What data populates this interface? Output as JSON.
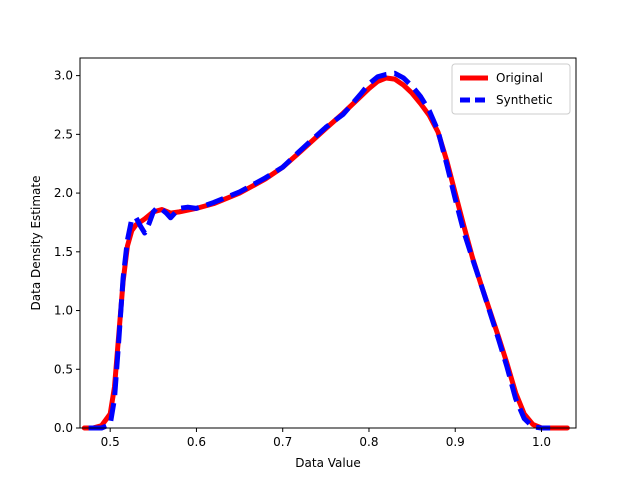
{
  "chart_data": {
    "type": "line",
    "title": "",
    "xlabel": "Data Value",
    "ylabel": "Data Density Estimate",
    "xlim": [
      0.465,
      1.04
    ],
    "ylim": [
      0.0,
      3.15
    ],
    "xticks": [
      0.5,
      0.6,
      0.7,
      0.8,
      0.9,
      1.0
    ],
    "xtick_labels": [
      "0.5",
      "0.6",
      "0.7",
      "0.8",
      "0.9",
      "1.0"
    ],
    "yticks": [
      0.0,
      0.5,
      1.0,
      1.5,
      2.0,
      2.5,
      3.0
    ],
    "ytick_labels": [
      "0.0",
      "0.5",
      "1.0",
      "1.5",
      "2.0",
      "2.5",
      "3.0"
    ],
    "grid": false,
    "legend_position": "top-right",
    "series": [
      {
        "name": "Original",
        "color": "#ff0000",
        "style": "solid",
        "x": [
          0.47,
          0.48,
          0.49,
          0.5,
          0.505,
          0.51,
          0.515,
          0.52,
          0.525,
          0.53,
          0.54,
          0.55,
          0.56,
          0.57,
          0.58,
          0.6,
          0.62,
          0.65,
          0.68,
          0.7,
          0.72,
          0.75,
          0.77,
          0.79,
          0.8,
          0.81,
          0.82,
          0.83,
          0.84,
          0.85,
          0.86,
          0.87,
          0.88,
          0.89,
          0.9,
          0.91,
          0.92,
          0.93,
          0.94,
          0.95,
          0.96,
          0.97,
          0.98,
          0.99,
          1.0,
          1.01,
          1.02,
          1.03
        ],
        "y": [
          0.0,
          0.0,
          0.02,
          0.12,
          0.35,
          0.8,
          1.25,
          1.55,
          1.68,
          1.73,
          1.78,
          1.84,
          1.86,
          1.83,
          1.84,
          1.87,
          1.91,
          2.0,
          2.12,
          2.22,
          2.35,
          2.55,
          2.68,
          2.82,
          2.89,
          2.95,
          2.98,
          2.97,
          2.92,
          2.85,
          2.76,
          2.66,
          2.52,
          2.28,
          2.0,
          1.72,
          1.45,
          1.22,
          1.0,
          0.78,
          0.55,
          0.3,
          0.12,
          0.03,
          0.0,
          0.0,
          0.0,
          0.0
        ]
      },
      {
        "name": "Synthetic",
        "color": "#0000ff",
        "style": "dashed",
        "x": [
          0.475,
          0.48,
          0.49,
          0.5,
          0.505,
          0.51,
          0.515,
          0.52,
          0.525,
          0.53,
          0.535,
          0.54,
          0.545,
          0.55,
          0.555,
          0.56,
          0.565,
          0.57,
          0.575,
          0.58,
          0.59,
          0.6,
          0.62,
          0.65,
          0.68,
          0.7,
          0.72,
          0.75,
          0.77,
          0.79,
          0.8,
          0.81,
          0.82,
          0.83,
          0.84,
          0.85,
          0.86,
          0.87,
          0.88,
          0.89,
          0.9,
          0.91,
          0.92,
          0.93,
          0.94,
          0.95,
          0.96,
          0.97,
          0.98,
          0.99,
          1.0,
          1.01
        ],
        "y": [
          0.0,
          0.0,
          0.0,
          0.03,
          0.25,
          0.75,
          1.28,
          1.6,
          1.78,
          1.79,
          1.72,
          1.66,
          1.74,
          1.84,
          1.88,
          1.86,
          1.83,
          1.79,
          1.83,
          1.87,
          1.88,
          1.87,
          1.92,
          2.01,
          2.13,
          2.22,
          2.36,
          2.56,
          2.67,
          2.84,
          2.93,
          2.99,
          3.01,
          3.02,
          2.98,
          2.91,
          2.82,
          2.7,
          2.53,
          2.25,
          1.95,
          1.67,
          1.44,
          1.22,
          0.99,
          0.76,
          0.52,
          0.25,
          0.08,
          0.01,
          0.0,
          0.0
        ]
      }
    ]
  }
}
